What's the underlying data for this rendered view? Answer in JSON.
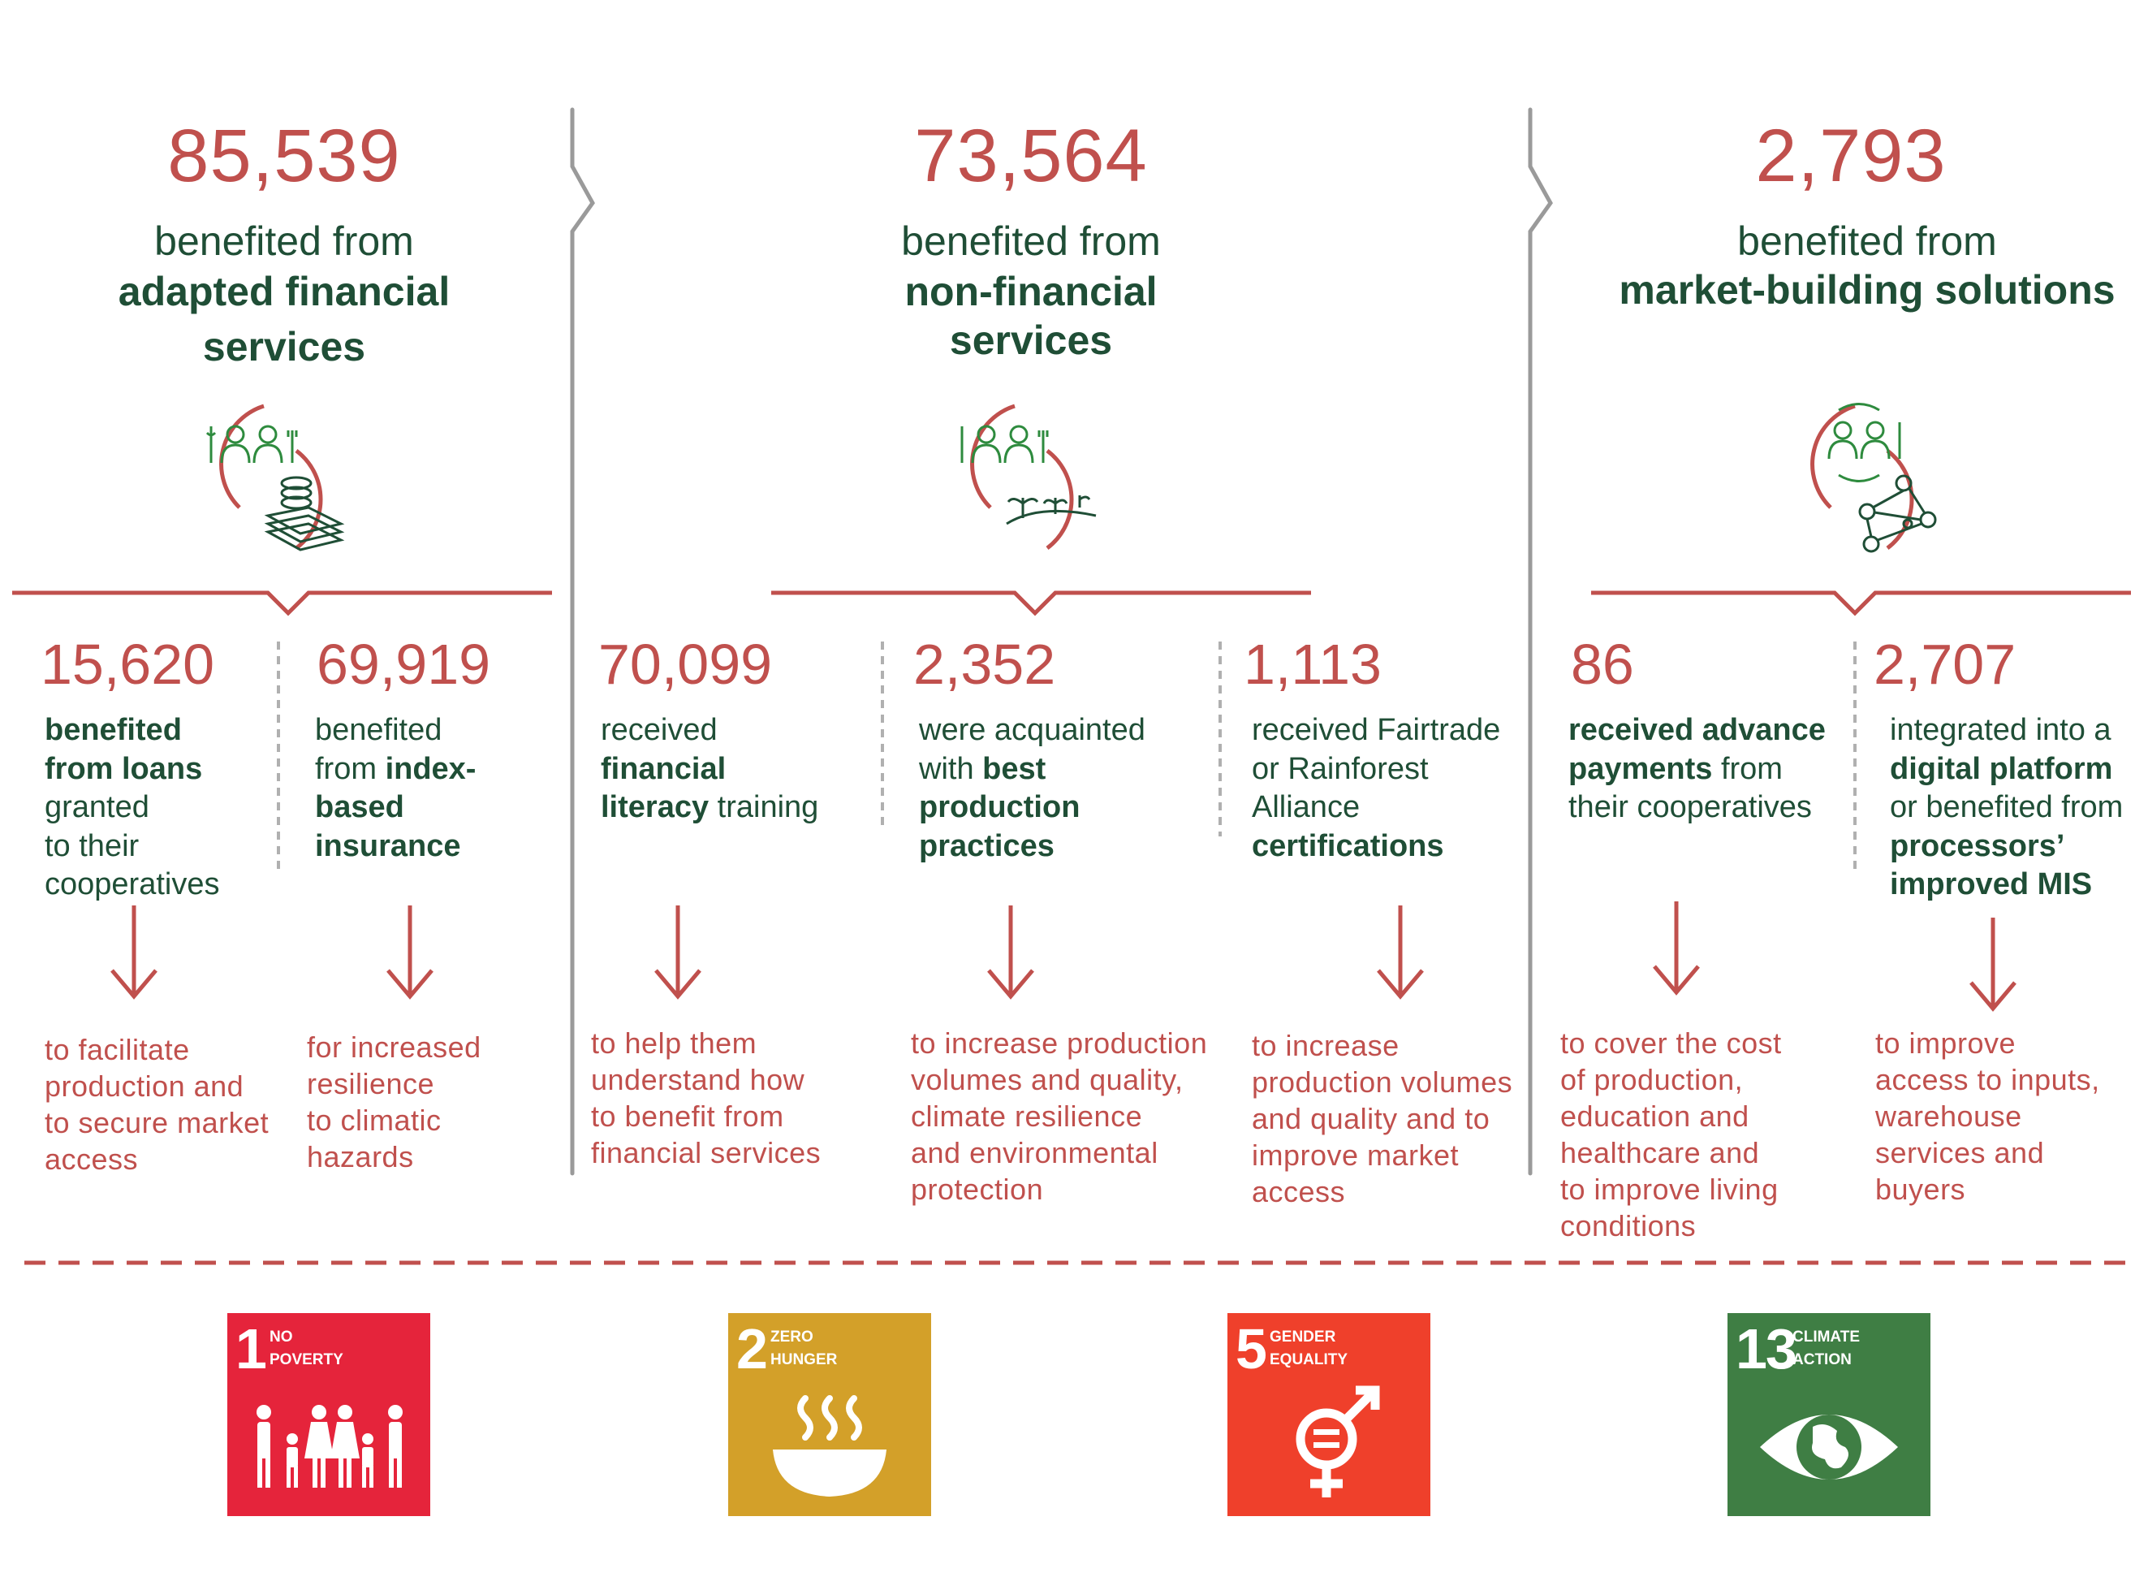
{
  "columns": [
    {
      "total": "85,539",
      "line1": "benefited from",
      "line2": "adapted financial",
      "line3": "services",
      "icon": "farmers-money-icon",
      "items": [
        {
          "number": "15,620",
          "desc": [
            {
              "t": "benefited",
              "b": true
            },
            {
              "t": "from loans",
              "b": true
            },
            {
              "t": "granted",
              "b": false
            },
            {
              "t": "to their",
              "b": false
            },
            {
              "t": "cooperatives",
              "b": false
            }
          ],
          "outcome": [
            "to facilitate",
            "production and",
            "to secure market",
            "access"
          ]
        },
        {
          "number": "69,919",
          "desc": [
            {
              "t": "benefited",
              "b": false
            },
            {
              "t": "from ",
              "b": false,
              "bold": "index-"
            },
            {
              "t": "based",
              "b": true
            },
            {
              "t": "insurance",
              "b": true
            }
          ],
          "outcome": [
            "for increased",
            "resilience",
            "to climatic",
            "hazards"
          ]
        }
      ]
    },
    {
      "total": "73,564",
      "line1": "benefited from",
      "line2": "non-financial",
      "line3": "services",
      "icon": "farmers-plants-icon",
      "items": [
        {
          "number": "70,099",
          "desc": [
            {
              "t": "received",
              "b": false
            },
            {
              "t": "financial",
              "b": true
            },
            {
              "t": "literacy",
              "b": true,
              "rest": " training"
            }
          ],
          "outcome": [
            "to help them",
            "understand how",
            "to benefit from",
            "financial services"
          ]
        },
        {
          "number": "2,352",
          "desc": [
            {
              "t": "were acquainted",
              "b": false
            },
            {
              "t": "with ",
              "b": false,
              "bold": "best"
            },
            {
              "t": "production",
              "b": true
            },
            {
              "t": "practices",
              "b": true
            }
          ],
          "outcome": [
            "to increase production",
            "volumes and quality,",
            "climate resilience",
            "and environmental",
            "protection"
          ]
        },
        {
          "number": "1,113",
          "desc": [
            {
              "t": "received Fairtrade",
              "b": false
            },
            {
              "t": "or Rainforest",
              "b": false
            },
            {
              "t": "Alliance",
              "b": false
            },
            {
              "t": "certifications",
              "b": true
            }
          ],
          "outcome": [
            "to increase",
            "production volumes",
            "and quality and to",
            "improve market",
            "access"
          ]
        }
      ]
    },
    {
      "total": "2,793",
      "line1": "benefited from",
      "line2": "market-building solutions",
      "line3": "",
      "icon": "farmers-network-icon",
      "items": [
        {
          "number": "86",
          "desc": [
            {
              "t": "received advance",
              "b": true
            },
            {
              "t": "payments",
              "b": true,
              "rest": " from"
            },
            {
              "t": "their cooperatives",
              "b": false
            }
          ],
          "outcome": [
            "to cover the cost",
            "of production,",
            "education and",
            "healthcare and",
            "to improve living",
            "conditions"
          ]
        },
        {
          "number": "2,707",
          "desc": [
            {
              "t": "integrated into a",
              "b": false
            },
            {
              "t": "digital platform",
              "b": true
            },
            {
              "t": "or benefited from",
              "b": false
            },
            {
              "t": "processors’",
              "b": true
            },
            {
              "t": "improved MIS",
              "b": true
            }
          ],
          "outcome": [
            "to improve",
            "access to inputs,",
            "warehouse",
            "services and",
            "buyers"
          ]
        }
      ]
    }
  ],
  "sdgs": [
    {
      "number": "1",
      "line1": "NO",
      "line2": "POVERTY",
      "color": "#e5243b",
      "icon": "family-icon"
    },
    {
      "number": "2",
      "line1": "ZERO",
      "line2": "HUNGER",
      "color": "#d3a029",
      "icon": "bowl-icon"
    },
    {
      "number": "5",
      "line1": "GENDER",
      "line2": "EQUALITY",
      "color": "#ef402b",
      "icon": "gender-equality-icon"
    },
    {
      "number": "13",
      "line1": "CLIMATE",
      "line2": "ACTION",
      "color": "#3f7e44",
      "icon": "eye-earth-icon"
    }
  ]
}
